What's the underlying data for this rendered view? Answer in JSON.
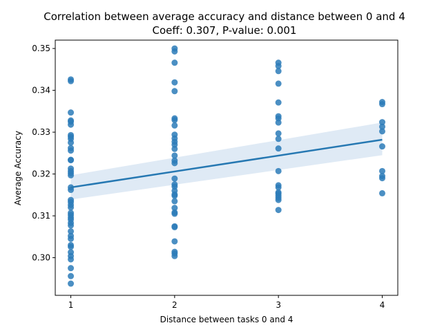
{
  "chart_data": {
    "type": "scatter",
    "title": "Correlation between average accuracy and distance between 0 and 4",
    "subtitle": "Coeff: 0.307, P-value:  0.001",
    "xlabel": "Distance between tasks 0 and 4",
    "ylabel": "Average Accuracy",
    "xlim": [
      0.85,
      4.15
    ],
    "ylim": [
      0.291,
      0.352
    ],
    "xticks": [
      1,
      2,
      3,
      4
    ],
    "yticks": [
      0.3,
      0.31,
      0.32,
      0.33,
      0.34,
      0.35
    ],
    "ytick_labels": [
      "0.30",
      "0.31",
      "0.32",
      "0.33",
      "0.34",
      "0.35"
    ],
    "grid": false,
    "colors": {
      "points": "#2b7bb9",
      "line": "#2678b2",
      "band": "#dce8f4"
    },
    "regression": {
      "x": [
        1,
        4
      ],
      "y": [
        0.3168,
        0.3282
      ],
      "ci_upper": [
        0.3197,
        0.3323
      ],
      "ci_lower": [
        0.3139,
        0.3245
      ]
    },
    "series": [
      {
        "points": [
          [
            1,
            0.3426
          ],
          [
            1,
            0.3422
          ],
          [
            1,
            0.3347
          ],
          [
            1,
            0.3328
          ],
          [
            1,
            0.3325
          ],
          [
            1,
            0.3318
          ],
          [
            1,
            0.3293
          ],
          [
            1,
            0.3289
          ],
          [
            1,
            0.3284
          ],
          [
            1,
            0.3275
          ],
          [
            1,
            0.3262
          ],
          [
            1,
            0.3256
          ],
          [
            1,
            0.3234
          ],
          [
            1,
            0.3233
          ],
          [
            1,
            0.3213
          ],
          [
            1,
            0.3207
          ],
          [
            1,
            0.3202
          ],
          [
            1,
            0.3197
          ],
          [
            1,
            0.3168
          ],
          [
            1,
            0.3162
          ],
          [
            1,
            0.3138
          ],
          [
            1,
            0.3133
          ],
          [
            1,
            0.3126
          ],
          [
            1,
            0.312
          ],
          [
            1,
            0.3107
          ],
          [
            1,
            0.3102
          ],
          [
            1,
            0.3096
          ],
          [
            1,
            0.3091
          ],
          [
            1,
            0.3083
          ],
          [
            1,
            0.3077
          ],
          [
            1,
            0.3063
          ],
          [
            1,
            0.3052
          ],
          [
            1,
            0.3045
          ],
          [
            1,
            0.303
          ],
          [
            1,
            0.3026
          ],
          [
            1,
            0.3013
          ],
          [
            1,
            0.3004
          ],
          [
            1,
            0.2996
          ],
          [
            1,
            0.2975
          ],
          [
            1,
            0.2956
          ],
          [
            1,
            0.2938
          ],
          [
            2,
            0.35
          ],
          [
            2,
            0.3493
          ],
          [
            2,
            0.3466
          ],
          [
            2,
            0.3419
          ],
          [
            2,
            0.3398
          ],
          [
            2,
            0.3333
          ],
          [
            2,
            0.3329
          ],
          [
            2,
            0.3316
          ],
          [
            2,
            0.3294
          ],
          [
            2,
            0.3285
          ],
          [
            2,
            0.3277
          ],
          [
            2,
            0.327
          ],
          [
            2,
            0.326
          ],
          [
            2,
            0.3244
          ],
          [
            2,
            0.3232
          ],
          [
            2,
            0.3226
          ],
          [
            2,
            0.3189
          ],
          [
            2,
            0.3175
          ],
          [
            2,
            0.317
          ],
          [
            2,
            0.316
          ],
          [
            2,
            0.3151
          ],
          [
            2,
            0.3148
          ],
          [
            2,
            0.3135
          ],
          [
            2,
            0.3119
          ],
          [
            2,
            0.3108
          ],
          [
            2,
            0.3105
          ],
          [
            2,
            0.3075
          ],
          [
            2,
            0.3073
          ],
          [
            2,
            0.3039
          ],
          [
            2,
            0.3014
          ],
          [
            2,
            0.301
          ],
          [
            2,
            0.3004
          ],
          [
            3,
            0.3466
          ],
          [
            3,
            0.3458
          ],
          [
            3,
            0.3446
          ],
          [
            3,
            0.3416
          ],
          [
            3,
            0.3371
          ],
          [
            3,
            0.3338
          ],
          [
            3,
            0.3333
          ],
          [
            3,
            0.3323
          ],
          [
            3,
            0.3297
          ],
          [
            3,
            0.3284
          ],
          [
            3,
            0.3261
          ],
          [
            3,
            0.3207
          ],
          [
            3,
            0.3173
          ],
          [
            3,
            0.3168
          ],
          [
            3,
            0.3156
          ],
          [
            3,
            0.3153
          ],
          [
            3,
            0.3148
          ],
          [
            3,
            0.3143
          ],
          [
            3,
            0.3138
          ],
          [
            3,
            0.3114
          ],
          [
            4,
            0.3372
          ],
          [
            4,
            0.3367
          ],
          [
            4,
            0.3324
          ],
          [
            4,
            0.3313
          ],
          [
            4,
            0.3302
          ],
          [
            4,
            0.3266
          ],
          [
            4,
            0.3207
          ],
          [
            4,
            0.3195
          ],
          [
            4,
            0.319
          ],
          [
            4,
            0.3154
          ]
        ]
      }
    ]
  }
}
